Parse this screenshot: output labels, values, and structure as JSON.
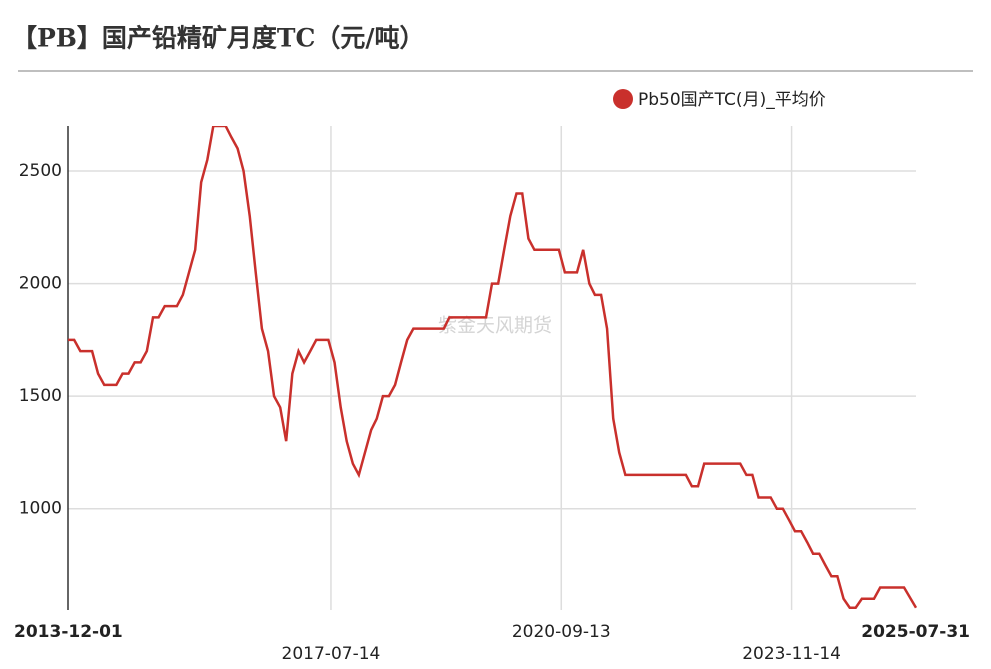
{
  "chart_data": {
    "type": "line",
    "title": "【PB】国产铅精矿月度TC（元/吨）",
    "watermark": "紫金天风期货",
    "legend": "top-right",
    "grid": true,
    "x": [
      "2013-12-01",
      "2014-01-01",
      "2014-02-01",
      "2014-04-01",
      "2014-05-01",
      "2014-06-01",
      "2014-08-01",
      "2014-09-01",
      "2014-10-01",
      "2014-11-01",
      "2014-12-01",
      "2015-01-01",
      "2015-02-01",
      "2015-03-01",
      "2015-04-01",
      "2015-06-01",
      "2015-07-01",
      "2015-08-01",
      "2015-09-01",
      "2015-10-01",
      "2015-11-01",
      "2015-12-01",
      "2016-02-01",
      "2016-03-01",
      "2016-04-01",
      "2016-05-01",
      "2016-06-01",
      "2016-07-01",
      "2016-08-01",
      "2016-09-01",
      "2016-10-01",
      "2016-11-01",
      "2016-12-01",
      "2017-01-01",
      "2017-02-01",
      "2017-03-01",
      "2017-04-01",
      "2017-05-01",
      "2017-07-01",
      "2017-08-01",
      "2017-09-01",
      "2017-10-01",
      "2017-11-01",
      "2017-12-01",
      "2018-01-01",
      "2018-02-01",
      "2018-03-01",
      "2018-04-01",
      "2018-05-01",
      "2018-06-01",
      "2018-07-01",
      "2018-08-01",
      "2018-09-01",
      "2019-02-01",
      "2019-03-01",
      "2019-09-01",
      "2019-10-01",
      "2019-11-01",
      "2019-12-01",
      "2020-01-01",
      "2020-02-01",
      "2020-03-01",
      "2020-04-01",
      "2020-05-01",
      "2020-09-01",
      "2020-10-01",
      "2020-12-01",
      "2021-01-01",
      "2021-02-01",
      "2021-03-01",
      "2021-04-01",
      "2021-05-01",
      "2021-06-01",
      "2021-07-01",
      "2021-08-01",
      "2022-06-01",
      "2022-07-01",
      "2022-08-01",
      "2022-09-01",
      "2023-03-01",
      "2023-04-01",
      "2023-05-01",
      "2023-06-01",
      "2023-08-01",
      "2023-09-01",
      "2023-10-01",
      "2023-11-01",
      "2023-12-01",
      "2024-01-01",
      "2024-02-01",
      "2024-03-01",
      "2024-04-01",
      "2024-05-01",
      "2024-06-01",
      "2024-07-01",
      "2024-08-01",
      "2024-09-01",
      "2024-10-01",
      "2024-11-01",
      "2025-01-01",
      "2025-02-01",
      "2025-06-01",
      "2025-07-31"
    ],
    "series": [
      {
        "name": "Pb50国产TC(月)_平均价",
        "color": "#c9302c",
        "values": [
          1750,
          1750,
          1700,
          1700,
          1600,
          1550,
          1550,
          1600,
          1600,
          1650,
          1650,
          1700,
          1850,
          1850,
          1900,
          1900,
          1950,
          2050,
          2150,
          2450,
          2550,
          2700,
          2700,
          2650,
          2600,
          2500,
          2300,
          2050,
          1800,
          1700,
          1500,
          1450,
          1300,
          1600,
          1700,
          1650,
          1700,
          1750,
          1750,
          1650,
          1450,
          1300,
          1200,
          1150,
          1250,
          1350,
          1400,
          1500,
          1500,
          1550,
          1650,
          1750,
          1800,
          1800,
          1850,
          1850,
          2000,
          2000,
          2150,
          2300,
          2400,
          2400,
          2200,
          2150,
          2150,
          2050,
          2050,
          2150,
          2000,
          1950,
          1950,
          1800,
          1400,
          1250,
          1150,
          1150,
          1100,
          1100,
          1200,
          1200,
          1150,
          1150,
          1050,
          1050,
          1000,
          1000,
          950,
          900,
          900,
          850,
          800,
          800,
          750,
          700,
          700,
          600,
          560,
          560,
          600,
          600,
          650,
          650,
          560
        ]
      }
    ],
    "xlim": [
      "2013-12-01",
      "2025-07-31"
    ],
    "xticks": [
      "2013-12-01",
      "2017-07-14",
      "2020-09-13",
      "2023-11-14",
      "2025-07-31"
    ],
    "ylim": [
      550,
      2700
    ],
    "yticks": [
      1000,
      1500,
      2000,
      2500
    ]
  }
}
